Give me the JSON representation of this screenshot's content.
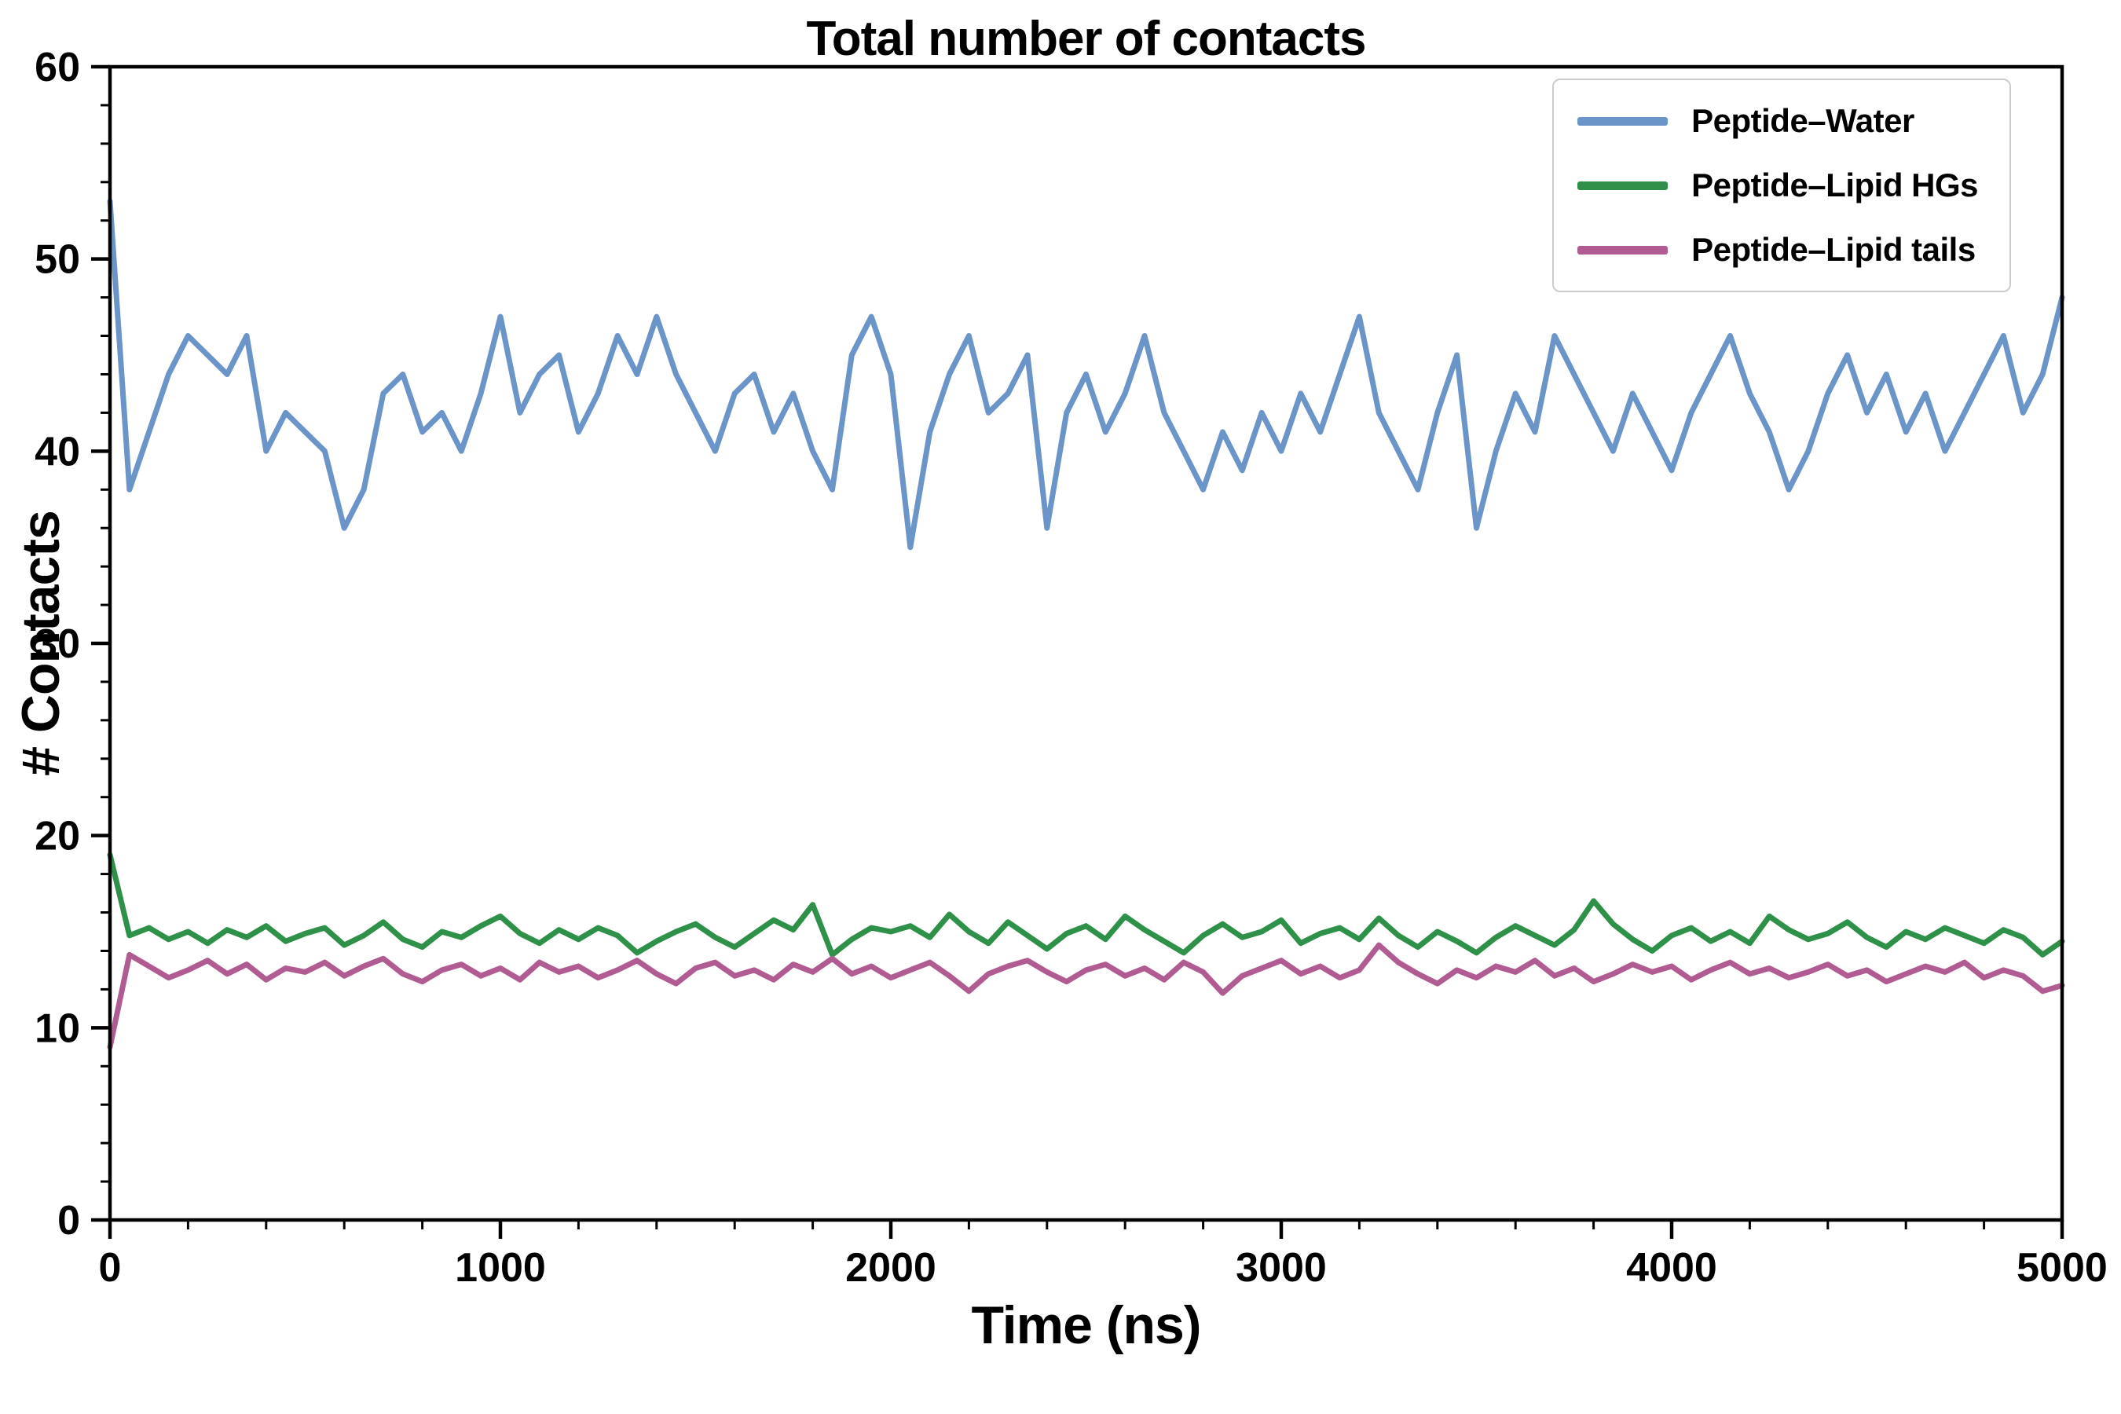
{
  "figure": {
    "title": "Total number of contacts",
    "xlabel": "Time (ns)",
    "ylabel": "# Contacts"
  },
  "chart_data": {
    "type": "line",
    "title": "Total number of contacts",
    "xlabel": "Time (ns)",
    "ylabel": "# Contacts",
    "xlim": [
      0,
      5000
    ],
    "ylim": [
      0,
      60
    ],
    "x_ticks": [
      0,
      1000,
      2000,
      3000,
      4000,
      5000
    ],
    "y_ticks": [
      0,
      10,
      20,
      30,
      40,
      50,
      60
    ],
    "x_minor_step": 200,
    "y_minor_step": 2,
    "grid": false,
    "legend_position": "upper right",
    "x_start": 0,
    "x_step": 50,
    "series": [
      {
        "name": "Peptide–Water",
        "color": "#6b95c8",
        "values": [
          53,
          38,
          41,
          44,
          46,
          45,
          44,
          46,
          40,
          42,
          41,
          40,
          36,
          38,
          43,
          44,
          41,
          42,
          40,
          43,
          47,
          42,
          44,
          45,
          41,
          43,
          46,
          44,
          47,
          44,
          42,
          40,
          43,
          44,
          41,
          43,
          40,
          38,
          45,
          47,
          44,
          35,
          41,
          44,
          46,
          42,
          43,
          45,
          36,
          42,
          44,
          41,
          43,
          46,
          42,
          40,
          38,
          41,
          39,
          42,
          40,
          43,
          41,
          44,
          47,
          42,
          40,
          38,
          42,
          45,
          36,
          40,
          43,
          41,
          46,
          44,
          42,
          40,
          43,
          41,
          39,
          42,
          44,
          46,
          43,
          41,
          38,
          40,
          43,
          45,
          42,
          44,
          41,
          43,
          40,
          42,
          44,
          46,
          42,
          44,
          48
        ]
      },
      {
        "name": "Peptide–Lipid HGs",
        "color": "#2f9149",
        "values": [
          19,
          14.8,
          15.2,
          14.6,
          15.0,
          14.4,
          15.1,
          14.7,
          15.3,
          14.5,
          14.9,
          15.2,
          14.3,
          14.8,
          15.5,
          14.6,
          14.2,
          15.0,
          14.7,
          15.3,
          15.8,
          14.9,
          14.4,
          15.1,
          14.6,
          15.2,
          14.8,
          13.9,
          14.5,
          15.0,
          15.4,
          14.7,
          14.2,
          14.9,
          15.6,
          15.1,
          16.4,
          13.8,
          14.6,
          15.2,
          15.0,
          15.3,
          14.7,
          15.9,
          15.0,
          14.4,
          15.5,
          14.8,
          14.1,
          14.9,
          15.3,
          14.6,
          15.8,
          15.1,
          14.5,
          13.9,
          14.8,
          15.4,
          14.7,
          15.0,
          15.6,
          14.4,
          14.9,
          15.2,
          14.6,
          15.7,
          14.8,
          14.2,
          15.0,
          14.5,
          13.9,
          14.7,
          15.3,
          14.8,
          14.3,
          15.1,
          16.6,
          15.4,
          14.6,
          14.0,
          14.8,
          15.2,
          14.5,
          15.0,
          14.4,
          15.8,
          15.1,
          14.6,
          14.9,
          15.5,
          14.7,
          14.2,
          15.0,
          14.6,
          15.2,
          14.8,
          14.4,
          15.1,
          14.7,
          13.8,
          14.5
        ]
      },
      {
        "name": "Peptide–Lipid tails",
        "color": "#b05c92",
        "values": [
          9.0,
          13.8,
          13.2,
          12.6,
          13.0,
          13.5,
          12.8,
          13.3,
          12.5,
          13.1,
          12.9,
          13.4,
          12.7,
          13.2,
          13.6,
          12.8,
          12.4,
          13.0,
          13.3,
          12.7,
          13.1,
          12.5,
          13.4,
          12.9,
          13.2,
          12.6,
          13.0,
          13.5,
          12.8,
          12.3,
          13.1,
          13.4,
          12.7,
          13.0,
          12.5,
          13.3,
          12.9,
          13.6,
          12.8,
          13.2,
          12.6,
          13.0,
          13.4,
          12.7,
          11.9,
          12.8,
          13.2,
          13.5,
          12.9,
          12.4,
          13.0,
          13.3,
          12.7,
          13.1,
          12.5,
          13.4,
          12.9,
          11.8,
          12.7,
          13.1,
          13.5,
          12.8,
          13.2,
          12.6,
          13.0,
          14.3,
          13.4,
          12.8,
          12.3,
          13.0,
          12.6,
          13.2,
          12.9,
          13.5,
          12.7,
          13.1,
          12.4,
          12.8,
          13.3,
          12.9,
          13.2,
          12.5,
          13.0,
          13.4,
          12.8,
          13.1,
          12.6,
          12.9,
          13.3,
          12.7,
          13.0,
          12.4,
          12.8,
          13.2,
          12.9,
          13.4,
          12.6,
          13.0,
          12.7,
          11.9,
          12.2
        ]
      }
    ]
  }
}
